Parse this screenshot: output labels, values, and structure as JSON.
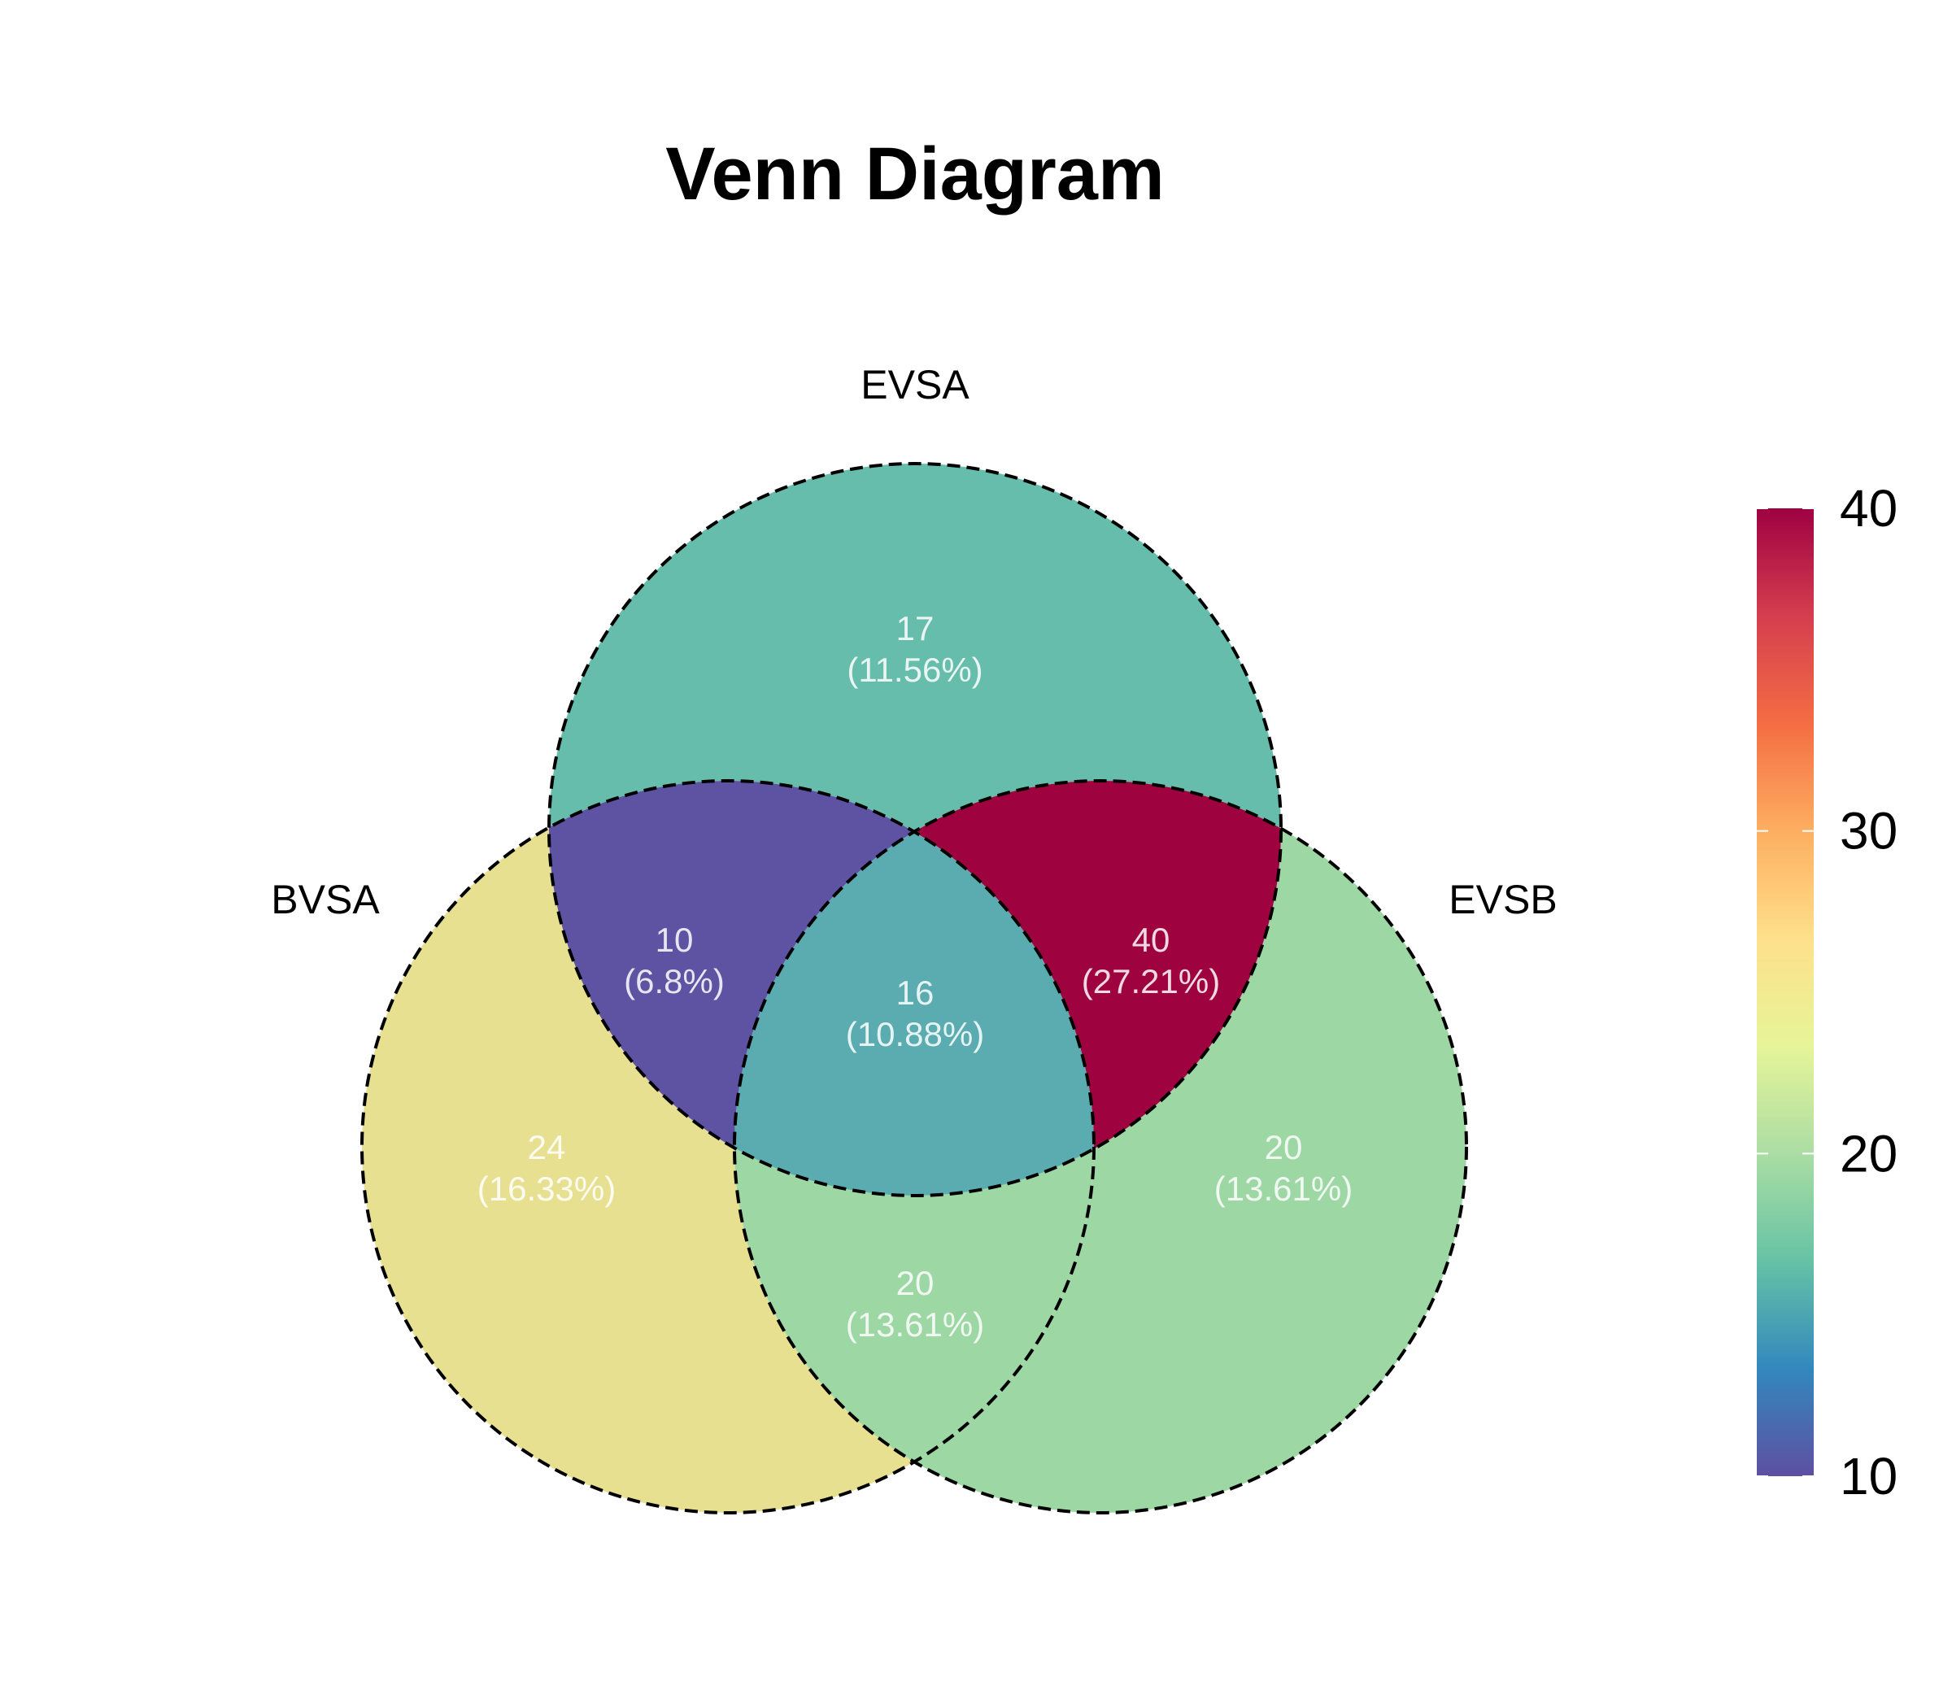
{
  "title": "Venn Diagram",
  "sets": [
    {
      "key": "BVSA",
      "label": "BVSA"
    },
    {
      "key": "EVSA",
      "label": "EVSA"
    },
    {
      "key": "EVSB",
      "label": "EVSB"
    }
  ],
  "regions": [
    {
      "id": "evsa-only",
      "sets": [
        "EVSA"
      ],
      "count": "17",
      "percent": "(11.56%)",
      "value": 17
    },
    {
      "id": "bvsa-evsa",
      "sets": [
        "BVSA",
        "EVSA"
      ],
      "count": "10",
      "percent": "(6.8%)",
      "value": 10
    },
    {
      "id": "evsa-evsb",
      "sets": [
        "EVSA",
        "EVSB"
      ],
      "count": "40",
      "percent": "(27.21%)",
      "value": 40
    },
    {
      "id": "all-three",
      "sets": [
        "BVSA",
        "EVSA",
        "EVSB"
      ],
      "count": "16",
      "percent": "(10.88%)",
      "value": 16
    },
    {
      "id": "bvsa-only",
      "sets": [
        "BVSA"
      ],
      "count": "24",
      "percent": "(16.33%)",
      "value": 24
    },
    {
      "id": "evsb-only",
      "sets": [
        "EVSB"
      ],
      "count": "20",
      "percent": "(13.61%)",
      "value": 20
    },
    {
      "id": "bvsa-evsb",
      "sets": [
        "BVSA",
        "EVSB"
      ],
      "count": "20",
      "percent": "(13.61%)",
      "value": 20
    }
  ],
  "colorbar": {
    "min": 10,
    "max": 40,
    "ticks": [
      "10",
      "20",
      "30",
      "40"
    ],
    "colormap": "Spectral_r",
    "stops": [
      "#5e4fa2",
      "#3288bd",
      "#66c2a5",
      "#abdda4",
      "#e6f598",
      "#fee08b",
      "#fdae61",
      "#f46d43",
      "#d53e4f",
      "#9e0142"
    ]
  },
  "colors": {
    "evsa-only": "#66bdab",
    "bvsa-evsa": "#5e53a3",
    "evsa-evsb": "#9e023f",
    "all-three": "#5bacb1",
    "bvsa-only": "#e8e091",
    "evsb-only": "#9dd7a4",
    "bvsa-evsb": "#9dd7a4"
  }
}
